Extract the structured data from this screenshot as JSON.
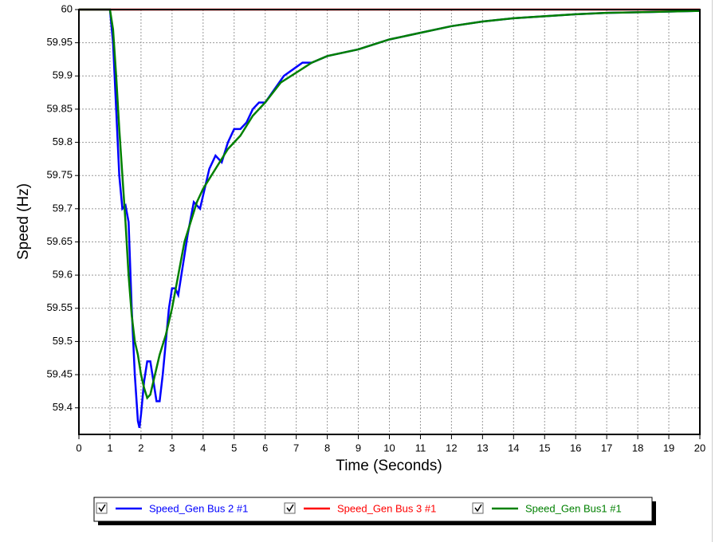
{
  "chart_data": {
    "type": "line",
    "xlabel": "Time (Seconds)",
    "ylabel": "Speed (Hz)",
    "xlim": [
      0,
      20
    ],
    "ylim": [
      59.36,
      60
    ],
    "xticks": [
      0,
      1,
      2,
      3,
      4,
      5,
      6,
      7,
      8,
      9,
      10,
      11,
      12,
      13,
      14,
      15,
      16,
      17,
      18,
      19,
      20
    ],
    "yticks": [
      60,
      59.95,
      59.9,
      59.85,
      59.8,
      59.75,
      59.7,
      59.65,
      59.6,
      59.55,
      59.5,
      59.45,
      59.4
    ],
    "grid": true,
    "legend": "bottom",
    "series": [
      {
        "name": "Speed_Gen Bus 2 #1",
        "color": "#0000ff",
        "x": [
          0,
          1,
          1.1,
          1.2,
          1.3,
          1.4,
          1.5,
          1.6,
          1.7,
          1.8,
          1.9,
          1.95,
          2.0,
          2.1,
          2.2,
          2.3,
          2.4,
          2.5,
          2.6,
          2.7,
          2.8,
          2.9,
          3.0,
          3.1,
          3.2,
          3.3,
          3.5,
          3.7,
          3.9,
          4.0,
          4.2,
          4.4,
          4.6,
          4.8,
          5.0,
          5.2,
          5.4,
          5.6,
          5.8,
          6.0,
          6.3,
          6.6,
          6.9,
          7.2,
          7.5,
          8,
          9,
          10,
          11,
          12,
          13,
          14,
          15,
          16,
          17,
          18,
          19,
          20
        ],
        "values": [
          60,
          60,
          59.95,
          59.85,
          59.75,
          59.7,
          59.705,
          59.68,
          59.55,
          59.45,
          59.38,
          59.37,
          59.39,
          59.44,
          59.47,
          59.47,
          59.44,
          59.41,
          59.41,
          59.45,
          59.5,
          59.55,
          59.58,
          59.58,
          59.57,
          59.6,
          59.66,
          59.71,
          59.7,
          59.72,
          59.76,
          59.78,
          59.77,
          59.8,
          59.82,
          59.82,
          59.83,
          59.85,
          59.86,
          59.86,
          59.88,
          59.9,
          59.91,
          59.92,
          59.92,
          59.93,
          59.94,
          59.955,
          59.965,
          59.975,
          59.982,
          59.987,
          59.99,
          59.993,
          59.995,
          59.996,
          59.997,
          59.998
        ]
      },
      {
        "name": "Speed_Gen Bus 3 #1",
        "color": "#ff0000",
        "x": [
          0,
          20
        ],
        "values": [
          60,
          60
        ]
      },
      {
        "name": "Speed_Gen Bus1 #1",
        "color": "#008000",
        "x": [
          0,
          1,
          1.1,
          1.2,
          1.3,
          1.4,
          1.5,
          1.6,
          1.7,
          1.8,
          1.9,
          2.0,
          2.1,
          2.2,
          2.3,
          2.4,
          2.5,
          2.6,
          2.8,
          3.0,
          3.2,
          3.4,
          3.6,
          3.8,
          4.0,
          4.4,
          4.8,
          5.2,
          5.6,
          6.0,
          6.5,
          7,
          7.5,
          8,
          9,
          10,
          11,
          12,
          13,
          14,
          15,
          16,
          17,
          18,
          19,
          20
        ],
        "values": [
          60,
          60,
          59.97,
          59.9,
          59.82,
          59.75,
          59.68,
          59.6,
          59.54,
          59.5,
          59.48,
          59.45,
          59.43,
          59.415,
          59.42,
          59.44,
          59.46,
          59.48,
          59.51,
          59.55,
          59.6,
          59.65,
          59.68,
          59.71,
          59.73,
          59.76,
          59.79,
          59.81,
          59.84,
          59.86,
          59.89,
          59.905,
          59.92,
          59.93,
          59.94,
          59.955,
          59.965,
          59.975,
          59.982,
          59.987,
          59.99,
          59.993,
          59.995,
          59.996,
          59.997,
          59.998
        ]
      }
    ]
  }
}
